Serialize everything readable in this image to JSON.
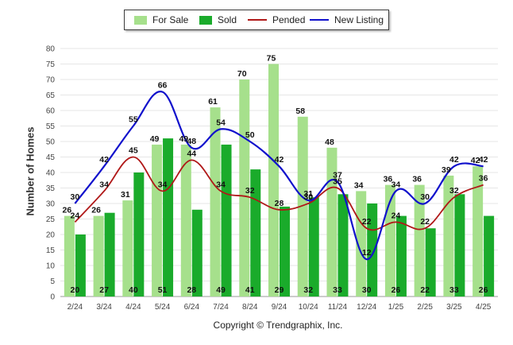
{
  "chart_data": {
    "type": "bar",
    "categories": [
      "2/24",
      "3/24",
      "4/24",
      "5/24",
      "6/24",
      "7/24",
      "8/24",
      "9/24",
      "10/24",
      "11/24",
      "12/24",
      "1/25",
      "2/25",
      "3/25",
      "4/25"
    ],
    "series": [
      {
        "name": "For Sale",
        "kind": "bar",
        "color": "#a6e08c",
        "values": [
          26,
          26,
          31,
          49,
          49,
          61,
          70,
          75,
          58,
          48,
          34,
          36,
          36,
          39,
          42
        ]
      },
      {
        "name": "Sold",
        "kind": "bar",
        "color": "#1aab2b",
        "values": [
          20,
          27,
          40,
          51,
          28,
          49,
          41,
          29,
          32,
          33,
          30,
          26,
          22,
          33,
          26
        ]
      },
      {
        "name": "Pended",
        "kind": "line",
        "color": "#b01818",
        "values": [
          24,
          34,
          45,
          34,
          44,
          34,
          32,
          28,
          30,
          35,
          22,
          24,
          22,
          32,
          36
        ]
      },
      {
        "name": "New Listing",
        "kind": "line",
        "color": "#1111cc",
        "values": [
          30,
          42,
          55,
          66,
          48,
          54,
          50,
          42,
          31,
          37,
          12,
          34,
          30,
          42,
          42
        ]
      }
    ],
    "xlabel": "",
    "ylabel": "Number of Homes",
    "ylim": [
      0,
      80
    ],
    "yticks": [
      0,
      5,
      10,
      15,
      20,
      25,
      30,
      35,
      40,
      45,
      50,
      55,
      60,
      65,
      70,
      75,
      80
    ],
    "grid": true,
    "legend_position": "top-center",
    "footer": "Copyright © Trendgraphix, Inc."
  }
}
